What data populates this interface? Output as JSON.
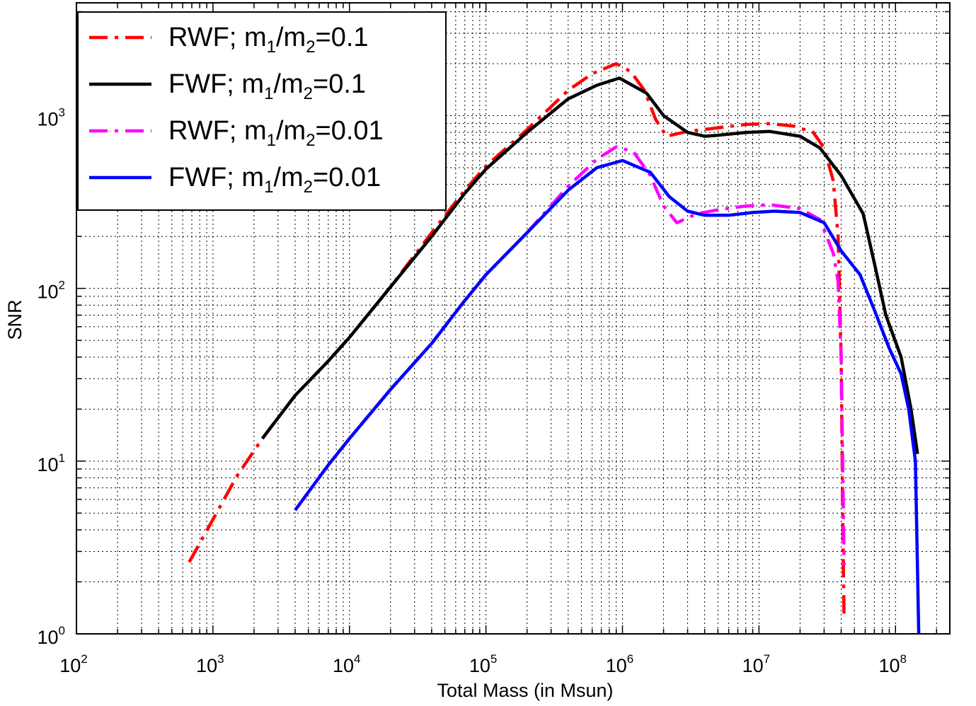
{
  "chart_data": {
    "type": "line",
    "xlabel": "Total Mass (in Msun)",
    "ylabel": "SNR",
    "xscale": "log",
    "yscale": "log",
    "xlim": [
      100,
      250000000
    ],
    "ylim": [
      1,
      4500
    ],
    "grid": true,
    "legend_position": "top-left",
    "x_ticks": [
      {
        "base": "10",
        "exp": "2",
        "value": 100
      },
      {
        "base": "10",
        "exp": "3",
        "value": 1000
      },
      {
        "base": "10",
        "exp": "4",
        "value": 10000
      },
      {
        "base": "10",
        "exp": "5",
        "value": 100000
      },
      {
        "base": "10",
        "exp": "6",
        "value": 1000000
      },
      {
        "base": "10",
        "exp": "7",
        "value": 10000000
      },
      {
        "base": "10",
        "exp": "8",
        "value": 100000000
      }
    ],
    "y_ticks": [
      {
        "base": "10",
        "exp": "0",
        "value": 1
      },
      {
        "base": "10",
        "exp": "1",
        "value": 10
      },
      {
        "base": "10",
        "exp": "2",
        "value": 100
      },
      {
        "base": "10",
        "exp": "3",
        "value": 1000
      }
    ],
    "series": [
      {
        "label_prefix": "RWF; m",
        "sub1": "1",
        "label_mid": "/m",
        "sub2": "2",
        "label_suffix": "=0.1",
        "color": "#ff0000",
        "style": "dashdot",
        "points": [
          [
            670,
            2.6
          ],
          [
            1000,
            4.6
          ],
          [
            1500,
            8.2
          ],
          [
            2300,
            13.5
          ],
          [
            4000,
            24
          ],
          [
            7000,
            38
          ],
          [
            10000,
            52
          ],
          [
            20000,
            102
          ],
          [
            40000,
            210
          ],
          [
            70000,
            370
          ],
          [
            100000,
            510
          ],
          [
            200000,
            830
          ],
          [
            400000,
            1400
          ],
          [
            600000,
            1750
          ],
          [
            900000,
            2000
          ],
          [
            1150000,
            1800
          ],
          [
            1450000,
            1400
          ],
          [
            1750000,
            950
          ],
          [
            2100000,
            760
          ],
          [
            3000000,
            810
          ],
          [
            5000000,
            850
          ],
          [
            8000000,
            890
          ],
          [
            12000000,
            900
          ],
          [
            18000000,
            870
          ],
          [
            25000000,
            800
          ],
          [
            30000000,
            650
          ],
          [
            35000000,
            420
          ],
          [
            38000000,
            200
          ],
          [
            40000000,
            40
          ],
          [
            41000000,
            5
          ],
          [
            42000000,
            1.2
          ]
        ]
      },
      {
        "label_prefix": "FWF; m",
        "sub1": "1",
        "label_mid": "/m",
        "sub2": "2",
        "label_suffix": "=0.1",
        "color": "#000000",
        "style": "solid",
        "points": [
          [
            2300,
            13.5
          ],
          [
            4000,
            24
          ],
          [
            7000,
            38
          ],
          [
            10000,
            52
          ],
          [
            20000,
            102
          ],
          [
            40000,
            200
          ],
          [
            70000,
            355
          ],
          [
            100000,
            490
          ],
          [
            200000,
            800
          ],
          [
            400000,
            1250
          ],
          [
            650000,
            1500
          ],
          [
            950000,
            1650
          ],
          [
            1500000,
            1350
          ],
          [
            2000000,
            1000
          ],
          [
            3000000,
            800
          ],
          [
            4000000,
            760
          ],
          [
            5000000,
            770
          ],
          [
            8000000,
            800
          ],
          [
            12000000,
            810
          ],
          [
            20000000,
            760
          ],
          [
            28000000,
            650
          ],
          [
            40000000,
            450
          ],
          [
            58000000,
            270
          ],
          [
            70000000,
            140
          ],
          [
            85000000,
            70
          ],
          [
            110000000,
            40
          ],
          [
            130000000,
            20
          ],
          [
            145000000,
            11
          ]
        ]
      },
      {
        "label_prefix": "RWF; m",
        "sub1": "1",
        "label_mid": "/m",
        "sub2": "2",
        "label_suffix": "=0.01",
        "color": "#ff00ff",
        "style": "dashdot",
        "points": [
          [
            4000,
            5.2
          ],
          [
            7000,
            9.5
          ],
          [
            10000,
            13.5
          ],
          [
            20000,
            26
          ],
          [
            40000,
            48
          ],
          [
            70000,
            85
          ],
          [
            100000,
            120
          ],
          [
            200000,
            210
          ],
          [
            400000,
            390
          ],
          [
            650000,
            560
          ],
          [
            900000,
            660
          ],
          [
            1200000,
            620
          ],
          [
            1600000,
            450
          ],
          [
            2000000,
            300
          ],
          [
            2500000,
            240
          ],
          [
            3500000,
            270
          ],
          [
            5000000,
            285
          ],
          [
            8000000,
            300
          ],
          [
            12000000,
            305
          ],
          [
            20000000,
            290
          ],
          [
            28000000,
            250
          ],
          [
            35000000,
            160
          ],
          [
            38000000,
            110
          ],
          [
            40000000,
            40
          ],
          [
            41000000,
            10
          ],
          [
            42000000,
            2.5
          ]
        ]
      },
      {
        "label_prefix": "FWF; m",
        "sub1": "1",
        "label_mid": "/m",
        "sub2": "2",
        "label_suffix": "=0.01",
        "color": "#0000ff",
        "style": "solid",
        "points": [
          [
            4000,
            5.2
          ],
          [
            7000,
            9.5
          ],
          [
            10000,
            13.5
          ],
          [
            20000,
            26
          ],
          [
            40000,
            48
          ],
          [
            70000,
            85
          ],
          [
            100000,
            120
          ],
          [
            200000,
            210
          ],
          [
            400000,
            370
          ],
          [
            650000,
            500
          ],
          [
            1000000,
            550
          ],
          [
            1600000,
            470
          ],
          [
            2200000,
            340
          ],
          [
            3000000,
            280
          ],
          [
            4000000,
            265
          ],
          [
            6000000,
            265
          ],
          [
            9000000,
            275
          ],
          [
            13000000,
            280
          ],
          [
            20000000,
            275
          ],
          [
            30000000,
            240
          ],
          [
            40000000,
            165
          ],
          [
            55000000,
            120
          ],
          [
            70000000,
            75
          ],
          [
            90000000,
            45
          ],
          [
            110000000,
            32
          ],
          [
            125000000,
            20
          ],
          [
            140000000,
            10
          ],
          [
            148000000,
            1
          ]
        ]
      }
    ]
  }
}
